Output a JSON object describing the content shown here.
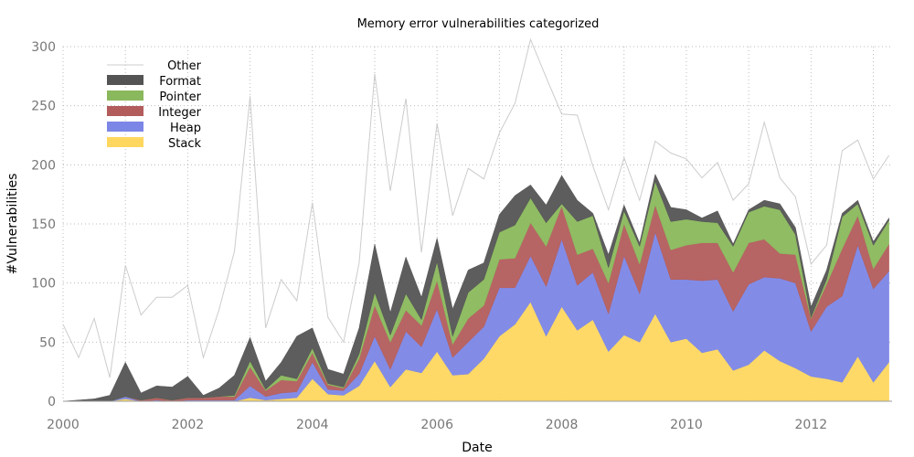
{
  "chart_data": {
    "type": "area",
    "title": "Memory error vulnerabilities categorized",
    "xlabel": "Date",
    "ylabel": "#Vulnerabilities",
    "xlim": [
      2000,
      2013.3
    ],
    "ylim": [
      0,
      300
    ],
    "x_ticks": [
      "2000",
      "2002",
      "2004",
      "2006",
      "2008",
      "2010",
      "2012"
    ],
    "y_ticks": [
      "0",
      "50",
      "100",
      "150",
      "200",
      "250",
      "300"
    ],
    "grid": true,
    "legend_position": "top-left",
    "x": [
      2000.0,
      2000.25,
      2000.5,
      2000.75,
      2001.0,
      2001.25,
      2001.5,
      2001.75,
      2002.0,
      2002.25,
      2002.5,
      2002.75,
      2003.0,
      2003.25,
      2003.5,
      2003.75,
      2004.0,
      2004.25,
      2004.5,
      2004.75,
      2005.0,
      2005.25,
      2005.5,
      2005.75,
      2006.0,
      2006.25,
      2006.5,
      2006.75,
      2007.0,
      2007.25,
      2007.5,
      2007.75,
      2008.0,
      2008.25,
      2008.5,
      2008.75,
      2009.0,
      2009.25,
      2009.5,
      2009.75,
      2010.0,
      2010.25,
      2010.5,
      2010.75,
      2011.0,
      2011.25,
      2011.5,
      2011.75,
      2012.0,
      2012.25,
      2012.5,
      2012.75,
      2013.0,
      2013.25
    ],
    "series": [
      {
        "name": "Stack",
        "color": "#ffd75f",
        "values": [
          0,
          0,
          0,
          0,
          2,
          0,
          0,
          0,
          0,
          0,
          0,
          0,
          3,
          1,
          2,
          3,
          19,
          6,
          5,
          13,
          34,
          12,
          27,
          24,
          42,
          22,
          23,
          36,
          55,
          65,
          84,
          55,
          80,
          60,
          69,
          42,
          56,
          50,
          74,
          50,
          53,
          41,
          44,
          26,
          31,
          43,
          34,
          28,
          21,
          19,
          16,
          38,
          16,
          33
        ]
      },
      {
        "name": "Heap",
        "color": "#7b86e6",
        "values": [
          0,
          0,
          0,
          0,
          2,
          0,
          1,
          0,
          1,
          1,
          1,
          1,
          10,
          3,
          5,
          5,
          14,
          4,
          4,
          10,
          21,
          15,
          32,
          22,
          36,
          15,
          27,
          27,
          41,
          31,
          39,
          42,
          57,
          38,
          40,
          32,
          67,
          41,
          69,
          53,
          50,
          61,
          59,
          50,
          68,
          62,
          70,
          72,
          38,
          61,
          73,
          94,
          79,
          77
        ]
      },
      {
        "name": "Integer",
        "color": "#b35c5c",
        "values": [
          0,
          0,
          0,
          0,
          0,
          1,
          2,
          1,
          2,
          2,
          3,
          3,
          16,
          5,
          11,
          9,
          8,
          4,
          2,
          13,
          26,
          23,
          18,
          18,
          24,
          11,
          20,
          18,
          24,
          25,
          28,
          34,
          28,
          26,
          20,
          26,
          27,
          25,
          23,
          25,
          29,
          32,
          31,
          33,
          35,
          32,
          21,
          24,
          11,
          19,
          40,
          25,
          17,
          23
        ]
      },
      {
        "name": "Pointer",
        "color": "#8ab85c",
        "values": [
          0,
          0,
          0,
          0,
          0,
          0,
          0,
          0,
          0,
          0,
          0,
          1,
          5,
          1,
          4,
          2,
          4,
          1,
          1,
          4,
          11,
          6,
          14,
          5,
          16,
          7,
          22,
          22,
          23,
          28,
          21,
          20,
          2,
          28,
          28,
          13,
          11,
          15,
          20,
          24,
          22,
          18,
          17,
          22,
          26,
          28,
          37,
          17,
          1,
          4,
          27,
          10,
          20,
          20
        ]
      },
      {
        "name": "Format",
        "color": "#545454",
        "values": [
          0,
          1,
          2,
          5,
          29,
          6,
          10,
          11,
          18,
          2,
          7,
          17,
          20,
          7,
          11,
          36,
          17,
          12,
          11,
          22,
          41,
          19,
          31,
          19,
          20,
          23,
          19,
          14,
          15,
          25,
          11,
          15,
          24,
          18,
          2,
          11,
          5,
          3,
          6,
          12,
          8,
          3,
          10,
          2,
          2,
          5,
          5,
          6,
          9,
          8,
          3,
          3,
          3,
          2
        ]
      },
      {
        "name": "Other",
        "color": "#cccccc",
        "values": [
          65,
          36,
          68,
          15,
          82,
          66,
          75,
          76,
          77,
          32,
          66,
          105,
          204,
          45,
          70,
          30,
          106,
          44,
          27,
          55,
          144,
          103,
          134,
          38,
          97,
          79,
          86,
          71,
          69,
          78,
          123,
          108,
          52,
          72,
          40,
          38,
          40,
          36,
          28,
          46,
          43,
          34,
          41,
          37,
          22,
          66,
          22,
          26,
          36,
          21,
          53,
          51,
          53,
          53
        ]
      }
    ]
  }
}
